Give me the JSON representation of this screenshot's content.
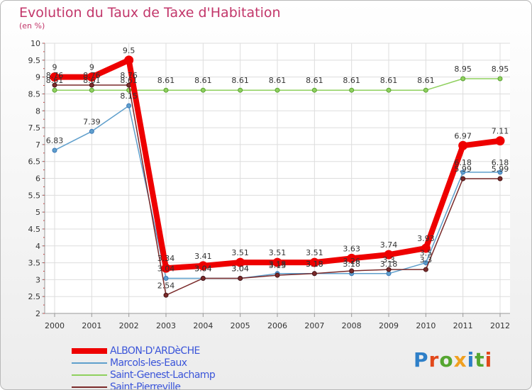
{
  "title": "Evolution du Taux de Taxe d'Habitation",
  "unit": "(en %)",
  "brand": "Proxiti",
  "chart_data": {
    "type": "line",
    "x": [
      "2000",
      "2001",
      "2002",
      "2003",
      "2004",
      "2005",
      "2006",
      "2007",
      "2008",
      "2009",
      "2010",
      "2011",
      "2012"
    ],
    "ylim": [
      2,
      10
    ],
    "yticks": [
      "2",
      "2.5",
      "3",
      "3.5",
      "4",
      "4.5",
      "5",
      "5.5",
      "6",
      "6.5",
      "7",
      "7.5",
      "8",
      "8.5",
      "9",
      "9.5",
      "10"
    ],
    "grid": true,
    "legend_position": "bottom",
    "series": [
      {
        "name": "ALBON-D'ARDèCHE",
        "color": "#ee0000",
        "values": [
          9,
          9,
          9.5,
          3.34,
          3.41,
          3.51,
          3.51,
          3.51,
          3.63,
          3.74,
          3.93,
          6.97,
          7.11
        ]
      },
      {
        "name": "Marcols-les-Eaux",
        "color": "#5f9fcc",
        "values": [
          6.83,
          7.39,
          8.15,
          3.04,
          3.04,
          3.04,
          3.18,
          3.18,
          3.18,
          3.18,
          3.5,
          6.18,
          6.18
        ]
      },
      {
        "name": "Saint-Genest-Lachamp",
        "color": "#8fd05e",
        "values": [
          8.61,
          8.61,
          8.61,
          8.61,
          8.61,
          8.61,
          8.61,
          8.61,
          8.61,
          8.61,
          8.61,
          8.95,
          8.95
        ]
      },
      {
        "name": "Saint-Pierreville",
        "color": "#7a2a2a",
        "values": [
          8.76,
          8.76,
          8.76,
          2.54,
          3.04,
          3.04,
          3.13,
          3.18,
          3.26,
          3.3,
          3.3,
          5.99,
          5.99
        ]
      }
    ],
    "labels": [
      [
        "9",
        "9",
        "9.5",
        "3.34",
        "3.41",
        "3.51",
        "3.51",
        "3.51",
        "3.63",
        "3.74",
        "3.93",
        "6.97",
        "7.11"
      ],
      [
        "6.83",
        "7.39",
        "8.15",
        "3.04",
        "3.04",
        "3.04",
        "3.18",
        "3.18",
        "3.18",
        "3.18",
        "3.5",
        "6.18",
        "6.18"
      ],
      [
        "8.61",
        "8.61",
        "8.61",
        "8.61",
        "8.61",
        "8.61",
        "8.61",
        "8.61",
        "8.61",
        "8.61",
        "8.61",
        "8.95",
        "8.95"
      ],
      [
        "8.76",
        "8.76",
        "8.76",
        "2.54",
        "3.04",
        "3.04",
        "3.13",
        "3.18",
        "3.26",
        "3.3",
        "3.3",
        "5.99",
        "5.99"
      ]
    ]
  }
}
